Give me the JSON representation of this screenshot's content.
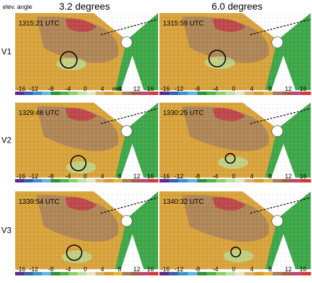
{
  "header": {
    "elev_label": "elev. angle",
    "col_left": "3.2 degrees",
    "col_right": "6.0 degrees"
  },
  "rows": [
    {
      "label": "V1",
      "times": [
        "1315:21 UTC",
        "1315:59 UTC"
      ]
    },
    {
      "label": "V2",
      "times": [
        "1329:48 UTC",
        "1330:25 UTC"
      ]
    },
    {
      "label": "V3",
      "times": [
        "1339:54 UTC",
        "1340:32 UTC"
      ]
    }
  ],
  "colorbar": {
    "ticks": [
      "-16",
      "-12",
      "-8",
      "-4",
      "0",
      "4",
      "8",
      "12",
      "16"
    ],
    "unit": "m/s",
    "colors": [
      "#5a2a8a",
      "#3a5fb0",
      "#3f8fd0",
      "#5fb7e0",
      "#2f8f3a",
      "#52b04a",
      "#8fcf6a",
      "#b9e3a0",
      "#e8e4c8",
      "#d8b36a",
      "#d79a2e",
      "#e6b53a",
      "#a47a5a",
      "#a65a4a",
      "#c0457a",
      "#d23a3a"
    ]
  },
  "colors": {
    "outbound_brown": "#a8825c",
    "inbound_green": "#3ea84a",
    "yellow": "#d9a43c"
  }
}
